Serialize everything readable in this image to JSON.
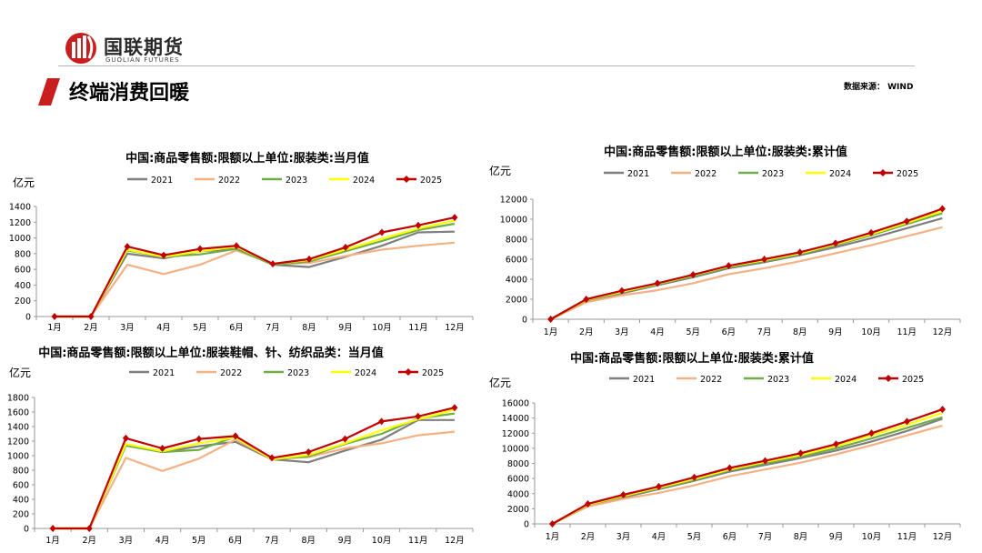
{
  "header": {
    "logo_cn": "国联期货",
    "logo_en": "GUOLIAN FUTURES",
    "title": "终端消费回暖",
    "source": "数据来源： WIND"
  },
  "colors": {
    "brand": "#c81e1e",
    "2021": "#7f7f7f",
    "2022": "#f4b183",
    "2023": "#70ad47",
    "2024": "#ffff00",
    "2025": "#c00000"
  },
  "chart_data": [
    {
      "id": "c1",
      "type": "line",
      "title": "中国:商品零售额:限额以上单位:服装类:当月值",
      "ylabel": "亿元",
      "ylim": [
        0,
        1400
      ],
      "ystep": 200,
      "categories": [
        "1月",
        "2月",
        "3月",
        "4月",
        "5月",
        "6月",
        "7月",
        "8月",
        "9月",
        "10月",
        "11月",
        "12月"
      ],
      "series": [
        {
          "name": "2021",
          "values": [
            0,
            0,
            800,
            740,
            830,
            860,
            660,
            630,
            760,
            900,
            1070,
            1080
          ]
        },
        {
          "name": "2022",
          "values": [
            0,
            0,
            660,
            540,
            660,
            840,
            670,
            680,
            770,
            850,
            900,
            940
          ]
        },
        {
          "name": "2023",
          "values": [
            0,
            0,
            840,
            760,
            790,
            860,
            660,
            700,
            830,
            960,
            1100,
            1180
          ]
        },
        {
          "name": "2024",
          "values": [
            0,
            0,
            850,
            760,
            830,
            890,
            670,
            720,
            850,
            990,
            1120,
            1220
          ]
        },
        {
          "name": "2025",
          "values": [
            0,
            0,
            890,
            780,
            860,
            900,
            670,
            730,
            880,
            1070,
            1160,
            1260
          ]
        }
      ]
    },
    {
      "id": "c2",
      "type": "line",
      "title": "中国:商品零售额:限额以上单位:服装类:累计值",
      "ylabel": "亿元",
      "ylim": [
        0,
        12000
      ],
      "ystep": 2000,
      "categories": [
        "1月",
        "2月",
        "3月",
        "4月",
        "5月",
        "6月",
        "7月",
        "8月",
        "9月",
        "10月",
        "11月",
        "12月"
      ],
      "series": [
        {
          "name": "2021",
          "values": [
            0,
            1800,
            2600,
            3400,
            4200,
            5100,
            5700,
            6400,
            7200,
            8100,
            9100,
            10100
          ]
        },
        {
          "name": "2022",
          "values": [
            0,
            1700,
            2400,
            2900,
            3600,
            4500,
            5100,
            5800,
            6600,
            7400,
            8300,
            9200
          ]
        },
        {
          "name": "2023",
          "values": [
            0,
            1900,
            2700,
            3500,
            4300,
            5200,
            5800,
            6500,
            7400,
            8400,
            9500,
            10600
          ]
        },
        {
          "name": "2024",
          "values": [
            0,
            1950,
            2750,
            3550,
            4400,
            5300,
            5900,
            6600,
            7500,
            8500,
            9650,
            10800
          ]
        },
        {
          "name": "2025",
          "values": [
            0,
            2000,
            2850,
            3600,
            4450,
            5350,
            6000,
            6700,
            7600,
            8650,
            9800,
            11050
          ]
        }
      ]
    },
    {
      "id": "c3",
      "type": "line",
      "title": "中国:商品零售额:限额以上单位:服装鞋帽、针、纺织品类：当月值",
      "ylabel": "亿元",
      "ylim": [
        0,
        1800
      ],
      "ystep": 200,
      "categories": [
        "1月",
        "2月",
        "3月",
        "4月",
        "5月",
        "6月",
        "7月",
        "8月",
        "9月",
        "10月",
        "11月",
        "12月"
      ],
      "series": [
        {
          "name": "2021",
          "values": [
            0,
            0,
            1140,
            1050,
            1130,
            1190,
            950,
            910,
            1070,
            1220,
            1490,
            1490
          ]
        },
        {
          "name": "2022",
          "values": [
            0,
            0,
            970,
            790,
            960,
            1220,
            960,
            980,
            1100,
            1170,
            1280,
            1330
          ]
        },
        {
          "name": "2023",
          "values": [
            0,
            0,
            1140,
            1050,
            1080,
            1260,
            950,
            990,
            1160,
            1300,
            1510,
            1580
          ]
        },
        {
          "name": "2024",
          "values": [
            0,
            0,
            1160,
            1060,
            1170,
            1250,
            950,
            1010,
            1170,
            1350,
            1500,
            1630
          ]
        },
        {
          "name": "2025",
          "values": [
            0,
            0,
            1240,
            1100,
            1230,
            1270,
            970,
            1050,
            1230,
            1470,
            1540,
            1660
          ]
        }
      ]
    },
    {
      "id": "c4",
      "type": "line",
      "title": "中国:商品零售额:限额以上单位:服装类:累计值",
      "ylabel": "亿元",
      "ylim": [
        0,
        16000
      ],
      "ystep": 2000,
      "categories": [
        "1月",
        "2月",
        "3月",
        "4月",
        "5月",
        "6月",
        "7月",
        "8月",
        "9月",
        "10月",
        "11月",
        "12月"
      ],
      "series": [
        {
          "name": "2021",
          "values": [
            0,
            2400,
            3500,
            4600,
            5700,
            6900,
            7800,
            8700,
            9700,
            10900,
            12300,
            13900
          ]
        },
        {
          "name": "2022",
          "values": [
            0,
            2300,
            3300,
            4100,
            5100,
            6300,
            7200,
            8100,
            9200,
            10400,
            11700,
            13000
          ]
        },
        {
          "name": "2023",
          "values": [
            0,
            2500,
            3650,
            4700,
            5800,
            7100,
            8000,
            8900,
            10000,
            11300,
            12700,
            14100
          ]
        },
        {
          "name": "2024",
          "values": [
            0,
            2550,
            3700,
            4800,
            5950,
            7200,
            8200,
            9100,
            10300,
            11700,
            13100,
            14700
          ]
        },
        {
          "name": "2025",
          "values": [
            0,
            2650,
            3850,
            4950,
            6150,
            7400,
            8350,
            9350,
            10550,
            12000,
            13550,
            15150
          ]
        }
      ]
    }
  ]
}
